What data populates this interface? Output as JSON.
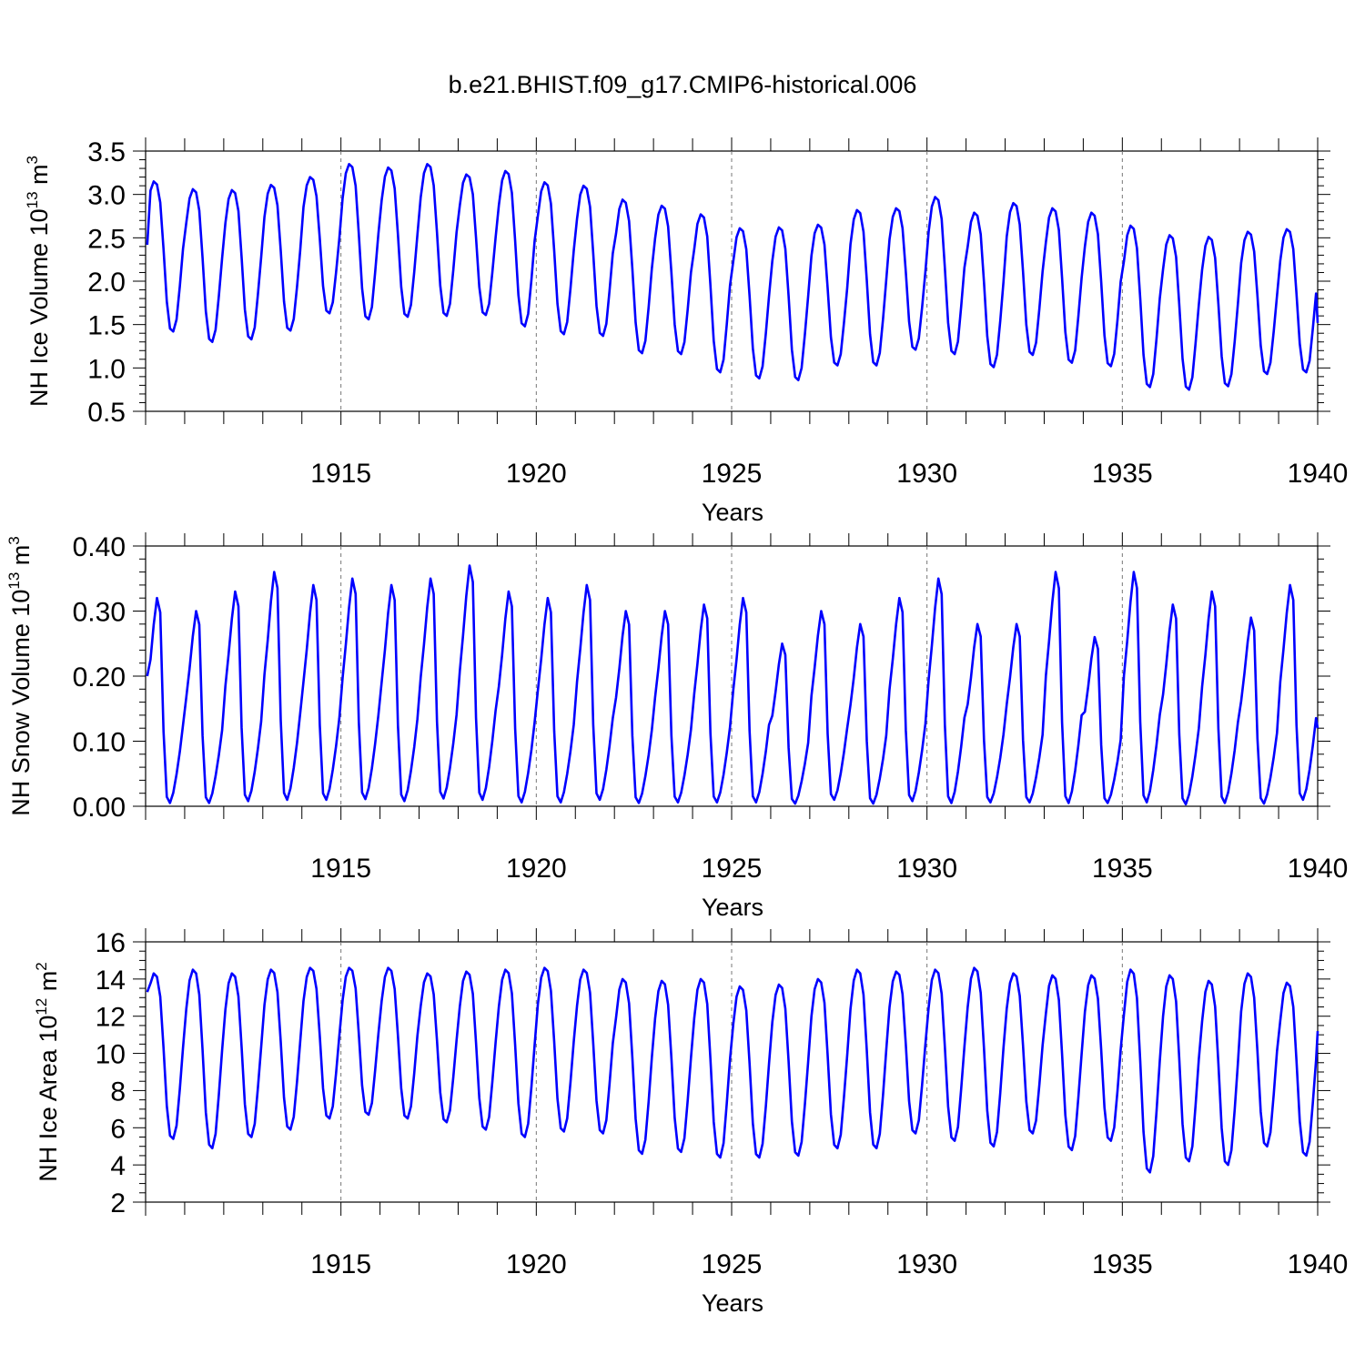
{
  "figure_title": "b.e21.BHIST.f09_g17.CMIP6-historical.006",
  "colors": {
    "line": "#0000ff",
    "grid": "#777777"
  },
  "chart_data": [
    {
      "type": "line",
      "ylabel_main": "NH Ice Volume 10",
      "ylabel_exp": "13",
      "ylabel_unit": " m",
      "ylabel_unit_exp": "3",
      "xlabel": "Years",
      "xlim": [
        1910,
        1940
      ],
      "ylim": [
        0.5,
        3.5
      ],
      "yticks": [
        "0.5",
        "1.0",
        "1.5",
        "2.0",
        "2.5",
        "3.0",
        "3.5"
      ],
      "yminor_step": 0.1,
      "xticks": [
        "1915",
        "1920",
        "1925",
        "1930",
        "1935",
        "1940"
      ],
      "grid_x": [
        1915,
        1920,
        1925,
        1930,
        1935
      ],
      "season_min_frac": 0.5,
      "start_value": 2.42,
      "end_value": 1.52,
      "series": [
        {
          "name": "NH Ice Volume",
          "annual_max": [
            3.15,
            3.06,
            3.05,
            3.11,
            3.2,
            3.35,
            3.31,
            3.35,
            3.23,
            3.27,
            3.14,
            3.1,
            2.94,
            2.87,
            2.77,
            2.61,
            2.62,
            2.65,
            2.82,
            2.84,
            2.97,
            2.79,
            2.9,
            2.84,
            2.79,
            2.64,
            2.53,
            2.51,
            2.57,
            2.6
          ],
          "annual_min": [
            1.42,
            1.3,
            1.33,
            1.43,
            1.63,
            1.56,
            1.59,
            1.6,
            1.61,
            1.48,
            1.39,
            1.37,
            1.17,
            1.16,
            0.95,
            0.88,
            0.86,
            1.03,
            1.03,
            1.21,
            1.16,
            1.01,
            1.15,
            1.06,
            1.02,
            0.78,
            0.75,
            0.79,
            0.93,
            0.95
          ]
        }
      ]
    },
    {
      "type": "line",
      "ylabel_main": "NH Snow Volume 10",
      "ylabel_exp": "13",
      "ylabel_unit": " m",
      "ylabel_unit_exp": "3",
      "xlabel": "Years",
      "xlim": [
        1910,
        1940
      ],
      "ylim": [
        0,
        0.4
      ],
      "yticks": [
        "0.00",
        "0.10",
        "0.20",
        "0.30",
        "0.40"
      ],
      "yminor_step": 0.02,
      "xticks": [
        "1915",
        "1920",
        "1925",
        "1930",
        "1935",
        "1940"
      ],
      "grid_x": [
        1915,
        1920,
        1925,
        1930,
        1935
      ],
      "season_min_frac": 0.7,
      "start_value": 0.2,
      "end_value": 0.12,
      "series": [
        {
          "name": "NH Snow Volume",
          "annual_max": [
            0.32,
            0.3,
            0.33,
            0.36,
            0.34,
            0.35,
            0.34,
            0.35,
            0.37,
            0.33,
            0.32,
            0.34,
            0.3,
            0.3,
            0.31,
            0.32,
            0.25,
            0.3,
            0.28,
            0.32,
            0.35,
            0.28,
            0.28,
            0.36,
            0.26,
            0.36,
            0.31,
            0.33,
            0.29,
            0.34
          ],
          "annual_min": [
            0.005,
            0.005,
            0.008,
            0.01,
            0.01,
            0.011,
            0.008,
            0.012,
            0.01,
            0.006,
            0.006,
            0.01,
            0.005,
            0.006,
            0.006,
            0.006,
            0.004,
            0.01,
            0.004,
            0.008,
            0.005,
            0.006,
            0.006,
            0.005,
            0.005,
            0.006,
            0.003,
            0.005,
            0.004,
            0.01
          ]
        }
      ]
    },
    {
      "type": "line",
      "ylabel_main": "NH Ice Area 10",
      "ylabel_exp": "12",
      "ylabel_unit": " m",
      "ylabel_unit_exp": "2",
      "xlabel": "Years",
      "xlim": [
        1910,
        1940
      ],
      "ylim": [
        2,
        16
      ],
      "yticks": [
        "2",
        "4",
        "6",
        "8",
        "10",
        "12",
        "14",
        "16"
      ],
      "yminor_step": 0.5,
      "xticks": [
        "1915",
        "1920",
        "1925",
        "1930",
        "1935",
        "1940"
      ],
      "grid_x": [
        1915,
        1920,
        1925,
        1930,
        1935
      ],
      "season_min_frac": 0.66,
      "start_value": 13.3,
      "end_value": 11.2,
      "series": [
        {
          "name": "NH Ice Area",
          "annual_max": [
            14.3,
            14.5,
            14.3,
            14.5,
            14.6,
            14.6,
            14.6,
            14.3,
            14.4,
            14.5,
            14.6,
            14.5,
            14.0,
            13.9,
            14.0,
            13.6,
            13.7,
            14.0,
            14.5,
            14.4,
            14.5,
            14.6,
            14.3,
            14.2,
            14.2,
            14.5,
            14.2,
            13.9,
            14.3,
            13.8
          ],
          "annual_min": [
            5.4,
            4.9,
            5.5,
            5.9,
            6.5,
            6.7,
            6.5,
            6.3,
            5.9,
            5.5,
            5.8,
            5.7,
            4.6,
            4.7,
            4.4,
            4.4,
            4.5,
            4.9,
            4.9,
            5.7,
            5.3,
            5.0,
            5.7,
            4.8,
            5.3,
            3.6,
            4.2,
            4.0,
            5.0,
            4.5
          ]
        }
      ]
    }
  ]
}
